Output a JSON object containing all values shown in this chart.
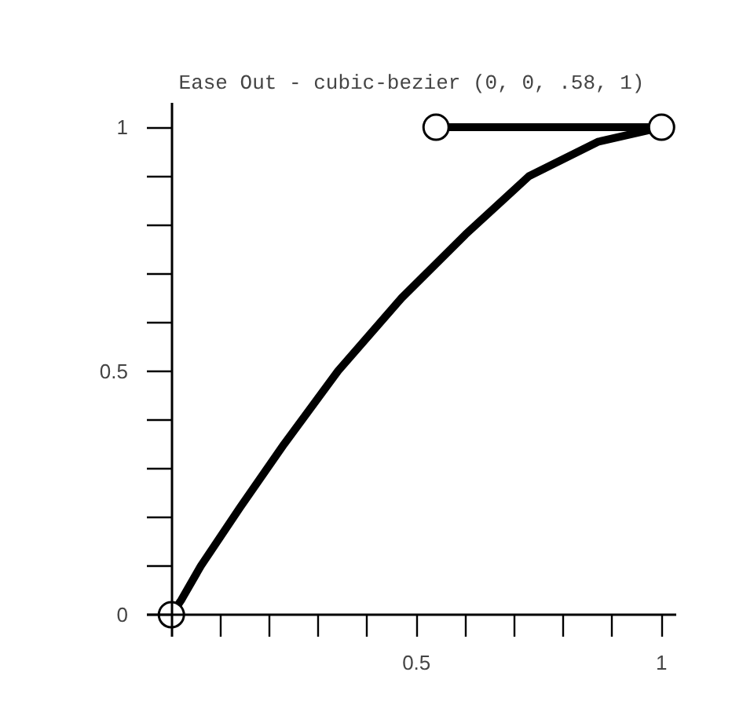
{
  "chart_data": {
    "type": "line",
    "title": "Ease Out - cubic-bezier (0, 0, .58, 1)",
    "xlim": [
      -0.05,
      1.03
    ],
    "ylim": [
      -0.045,
      1.05
    ],
    "xticks": [
      {
        "value": 0.1,
        "label": null
      },
      {
        "value": 0.2,
        "label": null
      },
      {
        "value": 0.3,
        "label": null
      },
      {
        "value": 0.4,
        "label": null
      },
      {
        "value": 0.5,
        "label": "0.5"
      },
      {
        "value": 0.6,
        "label": null
      },
      {
        "value": 0.7,
        "label": null
      },
      {
        "value": 0.8,
        "label": null
      },
      {
        "value": 0.9,
        "label": null
      },
      {
        "value": 1,
        "label": "1"
      }
    ],
    "yticks": [
      0,
      {
        "value": 0.1,
        "label": null
      },
      {
        "value": 0.2,
        "label": null
      },
      {
        "value": 0.3,
        "label": null
      },
      {
        "value": 0.4,
        "label": null
      },
      {
        "value": 0.5,
        "label": "0.5"
      },
      {
        "value": 0.6,
        "label": null
      },
      {
        "value": 0.7,
        "label": null
      },
      {
        "value": 0.8,
        "label": null
      },
      {
        "value": 0.9,
        "label": null
      },
      1
    ],
    "grid": false,
    "series": [
      {
        "color": "#000000",
        "marker": "none",
        "x": [
          0,
          0.02,
          0.06,
          0.14,
          0.23,
          0.34,
          0.47,
          0.6,
          0.73,
          0.87,
          1
        ],
        "values": [
          0,
          0.03,
          0.1,
          0.22,
          0.35,
          0.5,
          0.65,
          0.78,
          0.9,
          0.97,
          1
        ]
      },
      {
        "color": "#000000",
        "marker": "circle",
        "x": [
          0.54,
          1
        ],
        "values": [
          1,
          1
        ]
      },
      {
        "type": "scatter",
        "color": "#000000",
        "marker": "circle",
        "x": [
          0
        ],
        "values": [
          0
        ]
      }
    ]
  }
}
